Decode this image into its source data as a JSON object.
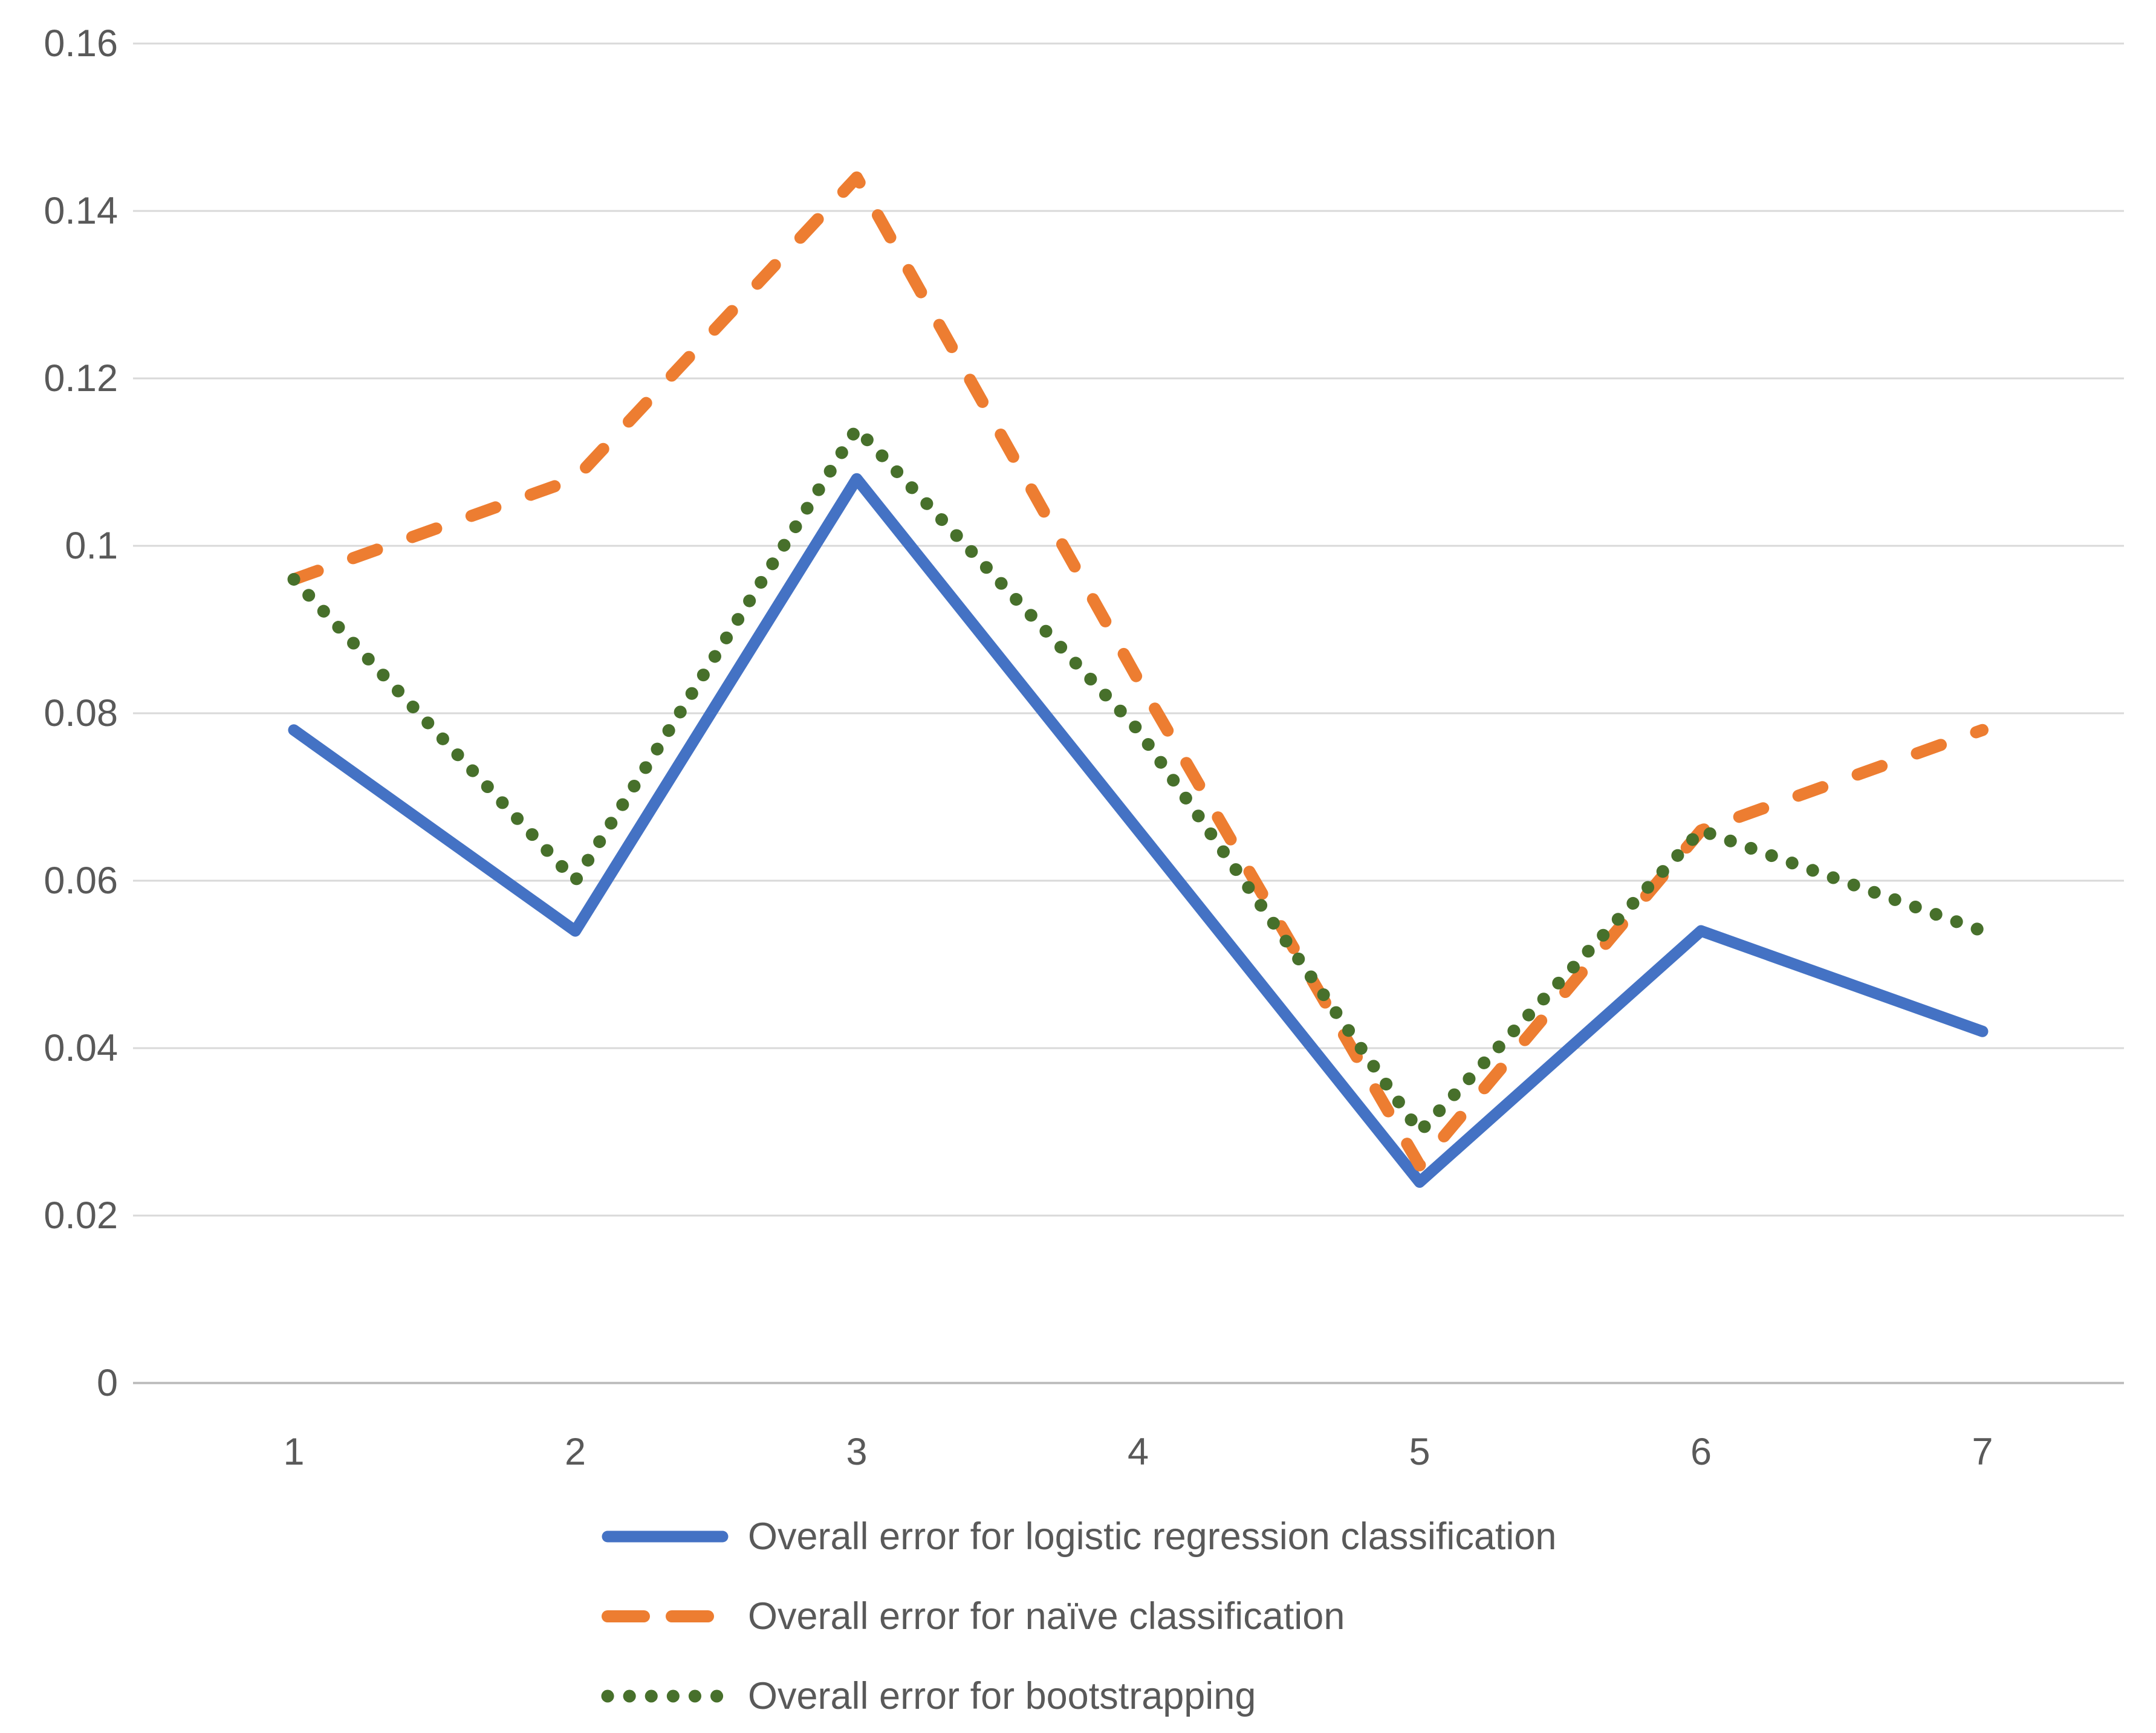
{
  "chart_data": {
    "type": "line",
    "title": "",
    "xlabel": "",
    "ylabel": "",
    "categories": [
      "1",
      "2",
      "3",
      "4",
      "5",
      "6",
      "7"
    ],
    "series": [
      {
        "name": "Overall error for logistic regression classification",
        "color": "#4472C4",
        "style": "solid",
        "values": [
          0.078,
          0.054,
          0.108,
          0.066,
          0.024,
          0.054,
          0.042
        ]
      },
      {
        "name": "Overall error for naïve classification",
        "color": "#ED7D31",
        "style": "dashed",
        "values": [
          0.096,
          0.108,
          0.144,
          0.084,
          0.026,
          0.066,
          0.078
        ]
      },
      {
        "name": "Overall error for bootstrapping",
        "color": "#47702B",
        "style": "dotted",
        "values": [
          0.096,
          0.06,
          0.114,
          0.078,
          0.03,
          0.066,
          0.054
        ]
      }
    ],
    "ylim": [
      0,
      0.16
    ],
    "yticks": [
      "0",
      "0.02",
      "0.04",
      "0.06",
      "0.08",
      "0.1",
      "0.12",
      "0.14",
      "0.16"
    ],
    "ytick_values": [
      0,
      0.02,
      0.04,
      0.06,
      0.08,
      0.1,
      0.12,
      0.14,
      0.16
    ],
    "grid": "horizontal",
    "legend_position": "bottom-left",
    "colors": {
      "gridline": "#D9D9D9",
      "axis_line": "#BFBFBF",
      "tick_label": "#595959",
      "background": "#FFFFFF"
    }
  }
}
